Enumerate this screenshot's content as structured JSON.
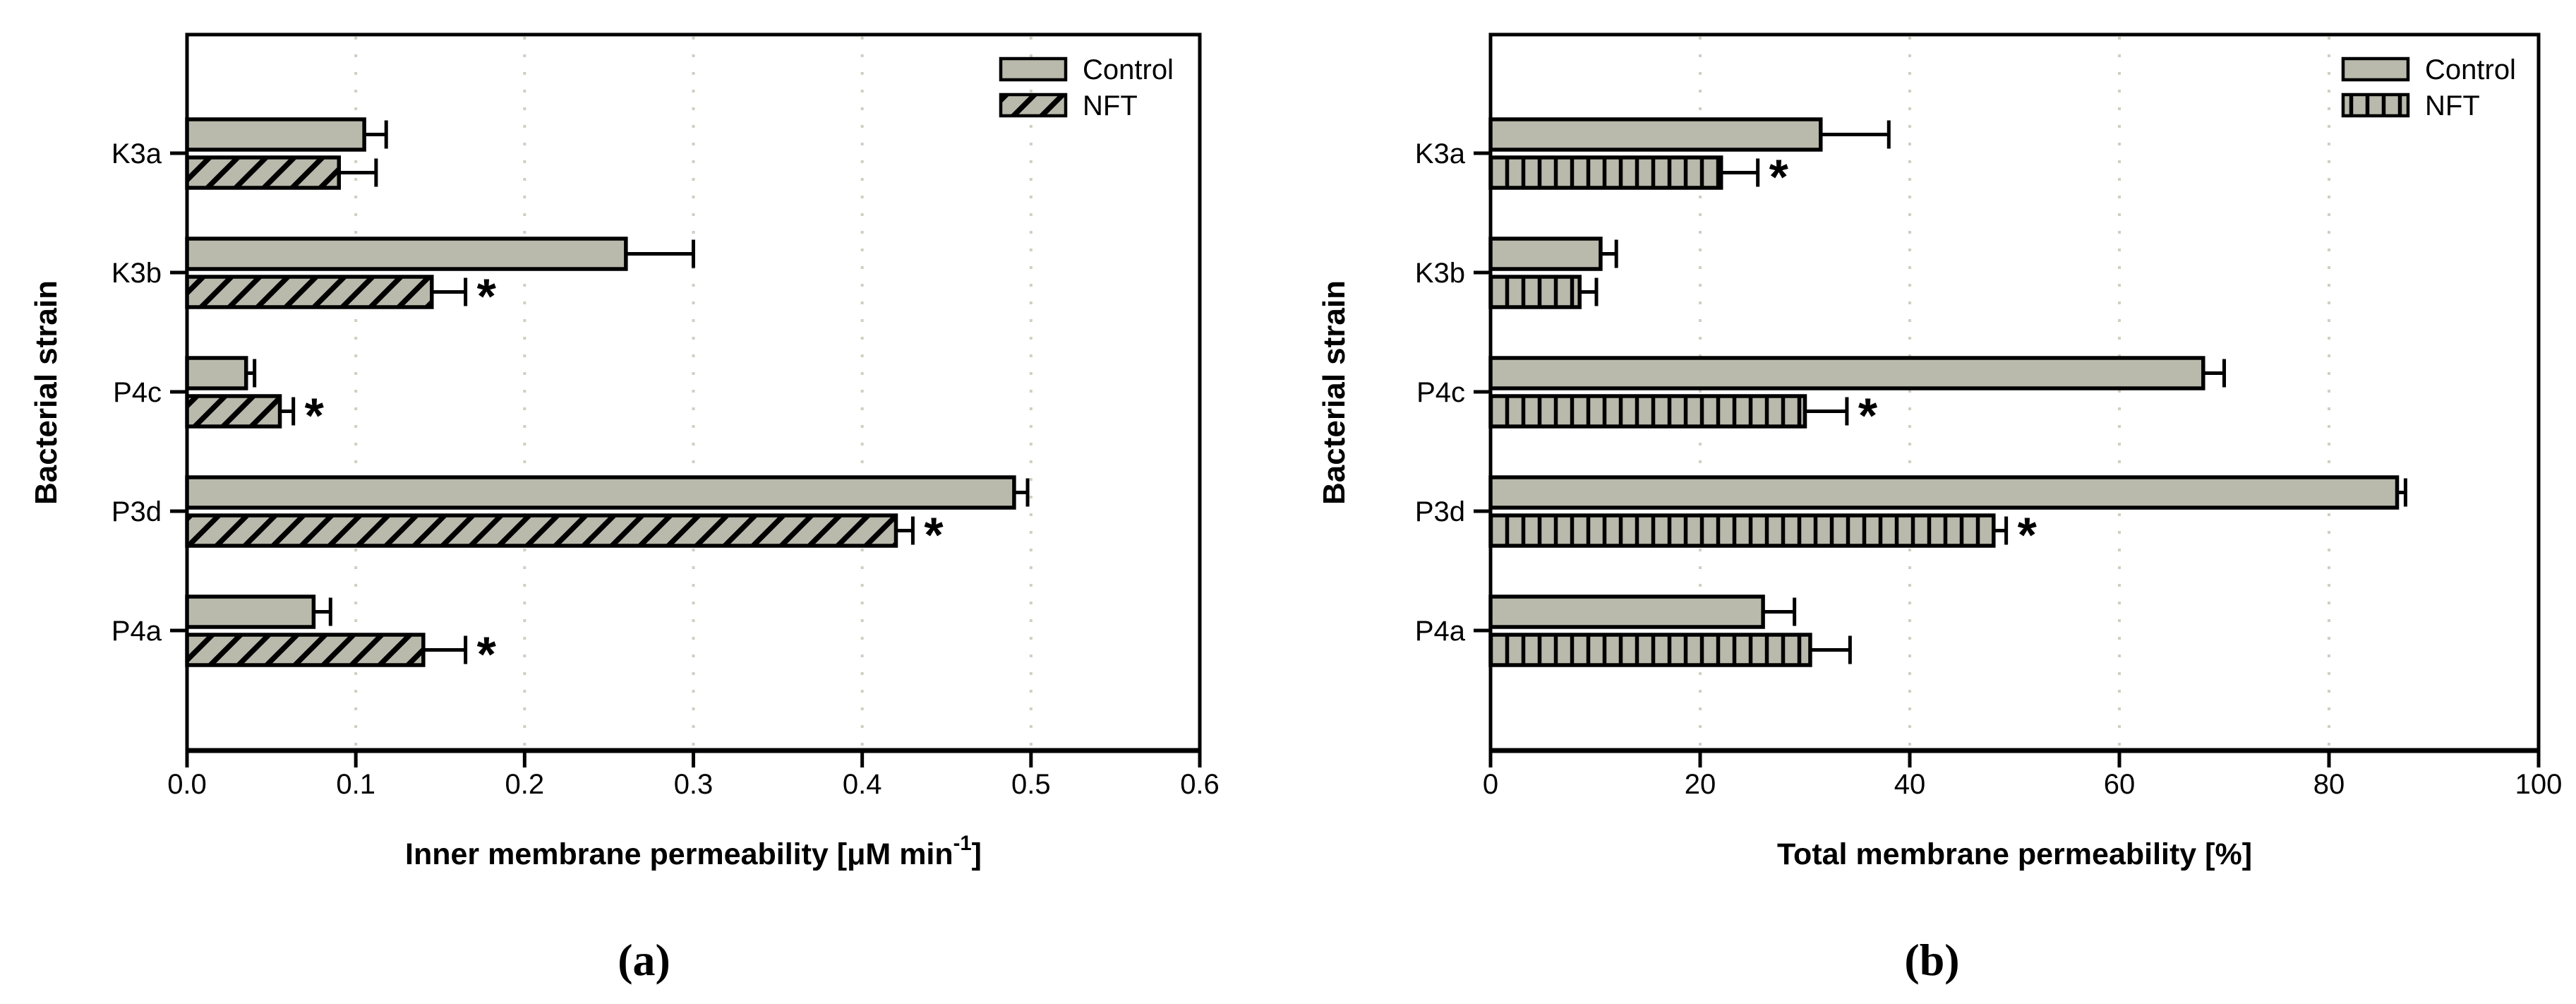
{
  "figure": {
    "background": "#ffffff",
    "colors": {
      "bar_fill": "#b9b9ac",
      "bar_border": "#000000",
      "grid": "#cfcfc3",
      "axis": "#000000",
      "text": "#000000"
    }
  },
  "chart_data": [
    {
      "id": "a",
      "type": "bar",
      "orientation": "horizontal",
      "caption": {
        "open": "(",
        "letter": "a",
        "close": ")"
      },
      "xlabel_plain": "Inner membrane permeability [μM min⁻¹]",
      "xlabel_parts": [
        {
          "t": "Inner membrane permeability [",
          "sup": false
        },
        {
          "t": "μ",
          "sup": false
        },
        {
          "t": "M min",
          "sup": false
        },
        {
          "t": "-1",
          "sup": true
        },
        {
          "t": "]",
          "sup": false
        }
      ],
      "ylabel": "Bacterial strain",
      "xlim": [
        0,
        0.6
      ],
      "xticks": {
        "values": [
          0,
          0.1,
          0.2,
          0.3,
          0.4,
          0.5,
          0.6
        ],
        "labels": [
          "0.0",
          "0.1",
          "0.2",
          "0.3",
          "0.4",
          "0.5",
          "0.6"
        ]
      },
      "gridlines": [
        0.1,
        0.2,
        0.3,
        0.4,
        0.5
      ],
      "grid_style": "dotted",
      "legend_position": "top-right",
      "categories": [
        "K3a",
        "K3b",
        "P4c",
        "P3d",
        "P4a"
      ],
      "significance_symbol": "*",
      "series": [
        {
          "name": "Control",
          "hatch": "none",
          "values": [
            0.105,
            0.26,
            0.035,
            0.49,
            0.075
          ],
          "errors": [
            0.013,
            0.04,
            0.005,
            0.008,
            0.01
          ],
          "sig": [
            false,
            false,
            false,
            false,
            false
          ]
        },
        {
          "name": "NFT",
          "hatch": "diagonal",
          "values": [
            0.09,
            0.145,
            0.055,
            0.42,
            0.14
          ],
          "errors": [
            0.022,
            0.02,
            0.008,
            0.01,
            0.025
          ],
          "sig": [
            false,
            true,
            true,
            true,
            true
          ]
        }
      ]
    },
    {
      "id": "b",
      "type": "bar",
      "orientation": "horizontal",
      "caption": {
        "open": "(",
        "letter": "b",
        "close": ")"
      },
      "xlabel_plain": "Total membrane permeability [%]",
      "xlabel_parts": [
        {
          "t": "Total membrane permeability [%]",
          "sup": false
        }
      ],
      "ylabel": "Bacterial strain",
      "xlim": [
        0,
        100
      ],
      "xticks": {
        "values": [
          0,
          20,
          40,
          60,
          80,
          100
        ],
        "labels": [
          "0",
          "20",
          "40",
          "60",
          "80",
          "100"
        ]
      },
      "gridlines": [
        20,
        40,
        60,
        80
      ],
      "grid_style": "dotted",
      "legend_position": "top-right",
      "categories": [
        "K3a",
        "K3b",
        "P4c",
        "P3d",
        "P4a"
      ],
      "significance_symbol": "*",
      "series": [
        {
          "name": "Control",
          "hatch": "none",
          "values": [
            31.5,
            10.5,
            68,
            86.5,
            26
          ],
          "errors": [
            6.5,
            1.5,
            2,
            0.8,
            3
          ],
          "sig": [
            false,
            false,
            false,
            false,
            false
          ]
        },
        {
          "name": "NFT",
          "hatch": "vertical",
          "values": [
            22,
            8.5,
            30,
            48,
            30.5
          ],
          "errors": [
            3.5,
            1.6,
            4,
            1.2,
            3.8
          ],
          "sig": [
            true,
            false,
            true,
            true,
            false
          ]
        }
      ]
    }
  ]
}
